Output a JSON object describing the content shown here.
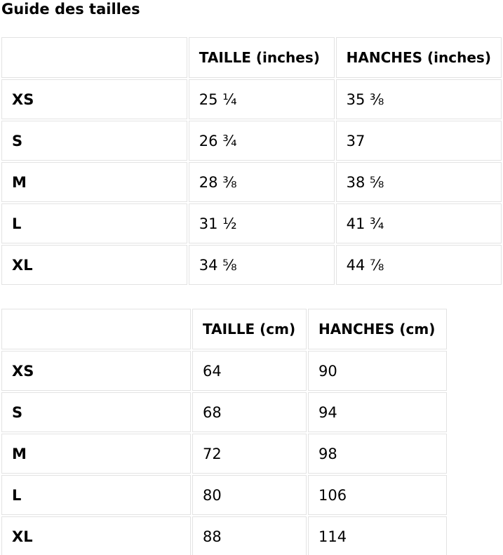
{
  "page": {
    "title": "Guide des tailles"
  },
  "tables": [
    {
      "name": "inches",
      "headers": [
        "",
        "TAILLE (inches)",
        "HANCHES (inches)"
      ],
      "rows": [
        {
          "size": "XS",
          "taille": "25 ¼",
          "hanches": "35 ⅜"
        },
        {
          "size": "S",
          "taille": "26 ¾",
          "hanches": "37"
        },
        {
          "size": "M",
          "taille": "28 ⅜",
          "hanches": "38 ⅝"
        },
        {
          "size": "L",
          "taille": "31 ½",
          "hanches": "41 ¾"
        },
        {
          "size": "XL",
          "taille": "34 ⅝",
          "hanches": "44 ⅞"
        }
      ]
    },
    {
      "name": "cm",
      "headers": [
        "",
        "TAILLE (cm)",
        "HANCHES (cm)"
      ],
      "rows": [
        {
          "size": "XS",
          "taille": "64",
          "hanches": "90"
        },
        {
          "size": "S",
          "taille": "68",
          "hanches": "94"
        },
        {
          "size": "M",
          "taille": "72",
          "hanches": "98"
        },
        {
          "size": "L",
          "taille": "80",
          "hanches": "106"
        },
        {
          "size": "XL",
          "taille": "88",
          "hanches": "114"
        }
      ]
    }
  ]
}
